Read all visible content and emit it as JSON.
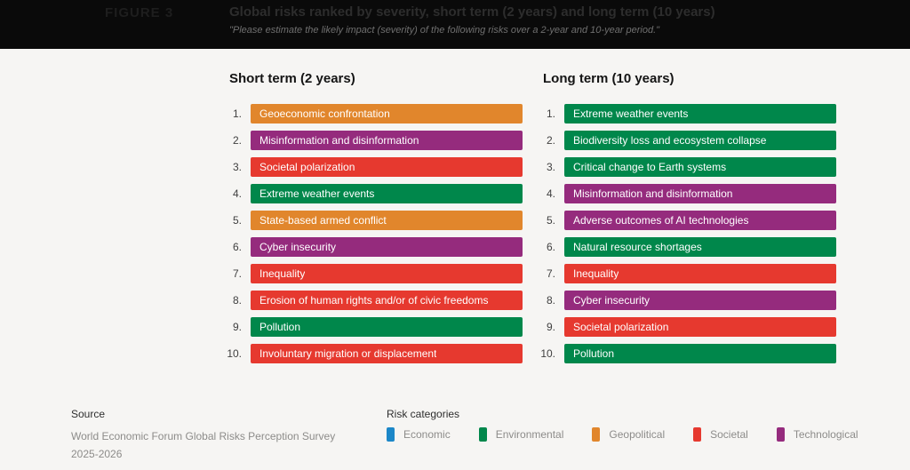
{
  "header": {
    "figure_label": "FIGURE 3",
    "title": "Global risks ranked by severity, short term (2 years) and long term (10 years)",
    "subtitle": "\"Please estimate the likely impact (severity) of the following risks over a 2-year and 10-year period.\""
  },
  "category_colors": {
    "Economic": "#1c87c8",
    "Environmental": "#00874b",
    "Geopolitical": "#e1862c",
    "Societal": "#e6392f",
    "Technological": "#952b7d"
  },
  "columns": [
    {
      "heading": "Short term (2 years)",
      "items": [
        {
          "rank": "1.",
          "label": "Geoeconomic confrontation",
          "category": "Geopolitical"
        },
        {
          "rank": "2.",
          "label": "Misinformation and disinformation",
          "category": "Technological"
        },
        {
          "rank": "3.",
          "label": "Societal polarization",
          "category": "Societal"
        },
        {
          "rank": "4.",
          "label": "Extreme weather events",
          "category": "Environmental"
        },
        {
          "rank": "5.",
          "label": "State-based armed conflict",
          "category": "Geopolitical"
        },
        {
          "rank": "6.",
          "label": "Cyber insecurity",
          "category": "Technological"
        },
        {
          "rank": "7.",
          "label": "Inequality",
          "category": "Societal"
        },
        {
          "rank": "8.",
          "label": "Erosion of human rights and/or of civic freedoms",
          "category": "Societal"
        },
        {
          "rank": "9.",
          "label": "Pollution",
          "category": "Environmental"
        },
        {
          "rank": "10.",
          "label": "Involuntary migration or displacement",
          "category": "Societal"
        }
      ]
    },
    {
      "heading": "Long term (10 years)",
      "items": [
        {
          "rank": "1.",
          "label": "Extreme weather events",
          "category": "Environmental"
        },
        {
          "rank": "2.",
          "label": "Biodiversity loss and ecosystem collapse",
          "category": "Environmental"
        },
        {
          "rank": "3.",
          "label": "Critical change to Earth systems",
          "category": "Environmental"
        },
        {
          "rank": "4.",
          "label": "Misinformation and disinformation",
          "category": "Technological"
        },
        {
          "rank": "5.",
          "label": "Adverse outcomes of AI technologies",
          "category": "Technological"
        },
        {
          "rank": "6.",
          "label": "Natural resource shortages",
          "category": "Environmental"
        },
        {
          "rank": "7.",
          "label": "Inequality",
          "category": "Societal"
        },
        {
          "rank": "8.",
          "label": "Cyber insecurity",
          "category": "Technological"
        },
        {
          "rank": "9.",
          "label": "Societal polarization",
          "category": "Societal"
        },
        {
          "rank": "10.",
          "label": "Pollution",
          "category": "Environmental"
        }
      ]
    }
  ],
  "footer": {
    "source_label": "Source",
    "source_line1": "World Economic Forum Global Risks Perception Survey",
    "source_line2": "2025-2026",
    "legend_title": "Risk categories",
    "legend": [
      {
        "label": "Economic",
        "color": "#1c87c8"
      },
      {
        "label": "Environmental",
        "color": "#00874b"
      },
      {
        "label": "Geopolitical",
        "color": "#e1862c"
      },
      {
        "label": "Societal",
        "color": "#e6392f"
      },
      {
        "label": "Technological",
        "color": "#952b7d"
      }
    ]
  },
  "chart_data": {
    "type": "table",
    "title": "Global risks ranked by severity, short term (2 years) and long term (10 years)",
    "subtitle": "\"Please estimate the likely impact (severity) of the following risks over a 2-year and 10-year period.\"",
    "legend_position": "bottom",
    "legend_entries": [
      "Economic",
      "Environmental",
      "Geopolitical",
      "Societal",
      "Technological"
    ],
    "series": [
      {
        "name": "Short term (2 years)",
        "values": [
          "Geoeconomic confrontation",
          "Misinformation and disinformation",
          "Societal polarization",
          "Extreme weather events",
          "State-based armed conflict",
          "Cyber insecurity",
          "Inequality",
          "Erosion of human rights and/or of civic freedoms",
          "Pollution",
          "Involuntary migration or displacement"
        ],
        "categories_per_value": [
          "Geopolitical",
          "Technological",
          "Societal",
          "Environmental",
          "Geopolitical",
          "Technological",
          "Societal",
          "Societal",
          "Environmental",
          "Societal"
        ]
      },
      {
        "name": "Long term (10 years)",
        "values": [
          "Extreme weather events",
          "Biodiversity loss and ecosystem collapse",
          "Critical change to Earth systems",
          "Misinformation and disinformation",
          "Adverse outcomes of AI technologies",
          "Natural resource shortages",
          "Inequality",
          "Cyber insecurity",
          "Societal polarization",
          "Pollution"
        ],
        "categories_per_value": [
          "Environmental",
          "Environmental",
          "Environmental",
          "Technological",
          "Technological",
          "Environmental",
          "Societal",
          "Technological",
          "Societal",
          "Environmental"
        ]
      }
    ],
    "ranks": [
      1,
      2,
      3,
      4,
      5,
      6,
      7,
      8,
      9,
      10
    ]
  }
}
